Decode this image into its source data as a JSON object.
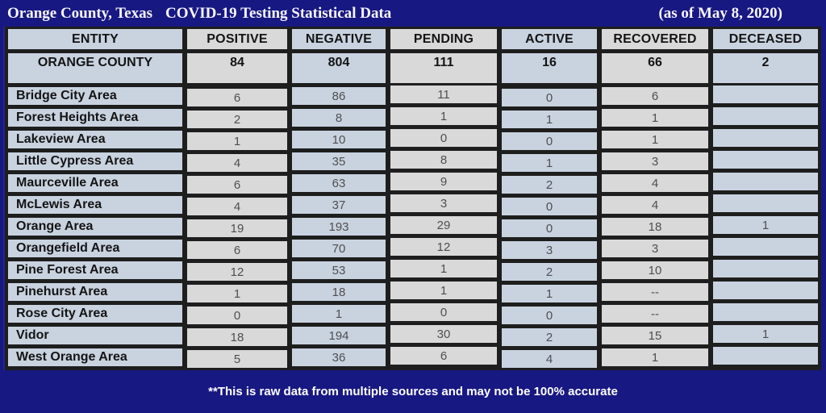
{
  "colors": {
    "navy_background": "#181882",
    "grid_border": "#1e1e1e",
    "cell_blue": "#c9d3e0",
    "cell_gray": "#d9d9d9",
    "header_text": "#141414",
    "value_text": "#4f4f4f",
    "title_text": "#f7f6ff"
  },
  "title": {
    "location": "Orange County, Texas",
    "main": "COVID-19 Testing Statistical Data",
    "date": "(as of  May 8, 2020)"
  },
  "footer": {
    "note": "**This is raw data from multiple sources and may not be 100% accurate"
  },
  "chart_data": {
    "type": "table",
    "title": "Orange County, Texas COVID-19 Testing Statistical Data (as of May 8, 2020)",
    "columns": [
      "ENTITY",
      "POSITIVE",
      "NEGATIVE",
      "PENDING",
      "ACTIVE",
      "RECOVERED",
      "DECEASED"
    ],
    "summary_row": {
      "entity": "ORANGE COUNTY",
      "values": [
        "84",
        "804",
        "111",
        "16",
        "66",
        "2"
      ]
    },
    "rows": [
      {
        "entity": "Bridge City Area",
        "values": [
          "6",
          "86",
          "11",
          "0",
          "6",
          ""
        ]
      },
      {
        "entity": "Forest Heights Area",
        "values": [
          "2",
          "8",
          "1",
          "1",
          "1",
          ""
        ]
      },
      {
        "entity": "Lakeview Area",
        "values": [
          "1",
          "10",
          "0",
          "0",
          "1",
          ""
        ]
      },
      {
        "entity": "Little Cypress Area",
        "values": [
          "4",
          "35",
          "8",
          "1",
          "3",
          ""
        ]
      },
      {
        "entity": "Maurceville Area",
        "values": [
          "6",
          "63",
          "9",
          "2",
          "4",
          ""
        ]
      },
      {
        "entity": "McLewis Area",
        "values": [
          "4",
          "37",
          "3",
          "0",
          "4",
          ""
        ]
      },
      {
        "entity": "Orange Area",
        "values": [
          "19",
          "193",
          "29",
          "0",
          "18",
          "1"
        ]
      },
      {
        "entity": "Orangefield Area",
        "values": [
          "6",
          "70",
          "12",
          "3",
          "3",
          ""
        ]
      },
      {
        "entity": "Pine Forest Area",
        "values": [
          "12",
          "53",
          "1",
          "2",
          "10",
          ""
        ]
      },
      {
        "entity": "Pinehurst Area",
        "values": [
          "1",
          "18",
          "1",
          "1",
          "--",
          ""
        ]
      },
      {
        "entity": "Rose City Area",
        "values": [
          "0",
          "1",
          "0",
          "0",
          "--",
          ""
        ]
      },
      {
        "entity": "Vidor",
        "values": [
          "18",
          "194",
          "30",
          "2",
          "15",
          "1"
        ]
      },
      {
        "entity": "West Orange Area",
        "values": [
          "5",
          "36",
          "6",
          "4",
          "1",
          ""
        ]
      }
    ]
  }
}
